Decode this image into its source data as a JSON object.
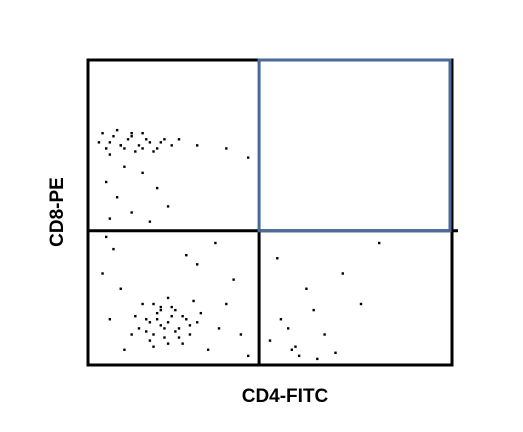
{
  "chart_data": {
    "type": "scatter",
    "xlabel": "CD4-FITC",
    "ylabel": "CD8-PE",
    "xlim": [
      0,
      100
    ],
    "ylim": [
      0,
      100
    ],
    "color": "#000000",
    "gate_color": "#4a6a9a",
    "gates": {
      "x": 47,
      "y": 44
    },
    "x": [
      3,
      5,
      7,
      9,
      11,
      13,
      15,
      17,
      19,
      21,
      23,
      4,
      6,
      8,
      10,
      12,
      14,
      16,
      18,
      20,
      6,
      9,
      12,
      15,
      25,
      5,
      8,
      12,
      15,
      19,
      22,
      10,
      17,
      6,
      30,
      38,
      44,
      14,
      16,
      18,
      20,
      22,
      24,
      26,
      28,
      15,
      17,
      19,
      21,
      23,
      25,
      27,
      29,
      13,
      18,
      22,
      26,
      30,
      16,
      20,
      24,
      28,
      19,
      21,
      23,
      17,
      25,
      12,
      31,
      20,
      22,
      18,
      4,
      7,
      9,
      30,
      35,
      40,
      6,
      10,
      33,
      38,
      42,
      5,
      27,
      36,
      44,
      50,
      53,
      56,
      60,
      65,
      70,
      52,
      58,
      62,
      55,
      68,
      75,
      80,
      57,
      63
    ],
    "y": [
      73,
      71,
      75,
      72,
      74,
      70,
      76,
      73,
      71,
      74,
      72,
      76,
      69,
      77,
      71,
      75,
      72,
      74,
      70,
      73,
      73,
      72,
      76,
      71,
      74,
      60,
      55,
      50,
      63,
      58,
      52,
      65,
      47,
      48,
      72,
      71,
      68,
      12,
      15,
      10,
      18,
      14,
      11,
      16,
      13,
      20,
      8,
      17,
      12,
      19,
      9,
      15,
      21,
      16,
      6,
      22,
      7,
      14,
      11,
      13,
      18,
      10,
      15,
      9,
      16,
      14,
      12,
      10,
      17,
      19,
      7,
      20,
      30,
      38,
      25,
      33,
      40,
      28,
      15,
      5,
      5,
      20,
      10,
      42,
      36,
      12,
      3,
      8,
      15,
      5,
      25,
      10,
      30,
      35,
      3,
      18,
      12,
      4,
      20,
      40,
      6,
      2
    ]
  }
}
